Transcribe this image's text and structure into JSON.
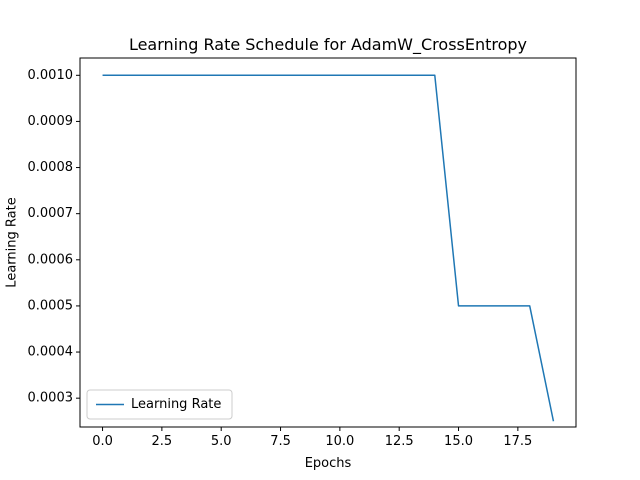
{
  "chart_data": {
    "type": "line",
    "title": "Learning Rate Schedule for AdamW_CrossEntropy",
    "xlabel": "Epochs",
    "ylabel": "Learning Rate",
    "xlim": [
      -0.95,
      19.95
    ],
    "ylim": [
      0.0002375,
      0.0010375
    ],
    "x_ticks": [
      0.0,
      2.5,
      5.0,
      7.5,
      10.0,
      12.5,
      15.0,
      17.5
    ],
    "x_tick_labels": [
      "0.0",
      "2.5",
      "5.0",
      "7.5",
      "10.0",
      "12.5",
      "15.0",
      "17.5"
    ],
    "y_ticks": [
      0.0003,
      0.0004,
      0.0005,
      0.0006,
      0.0007,
      0.0008,
      0.0009,
      0.001
    ],
    "y_tick_labels": [
      "0.0003",
      "0.0004",
      "0.0005",
      "0.0006",
      "0.0007",
      "0.0008",
      "0.0009",
      "0.0010"
    ],
    "grid": false,
    "legend_position": "lower-left",
    "series": [
      {
        "name": "Learning Rate",
        "color": "#1f77b4",
        "x": [
          0,
          1,
          2,
          3,
          4,
          5,
          6,
          7,
          8,
          9,
          10,
          11,
          12,
          13,
          14,
          15,
          16,
          17,
          18,
          19
        ],
        "values": [
          0.001,
          0.001,
          0.001,
          0.001,
          0.001,
          0.001,
          0.001,
          0.001,
          0.001,
          0.001,
          0.001,
          0.001,
          0.001,
          0.001,
          0.001,
          0.0005,
          0.0005,
          0.0005,
          0.0005,
          0.00025
        ]
      }
    ]
  }
}
